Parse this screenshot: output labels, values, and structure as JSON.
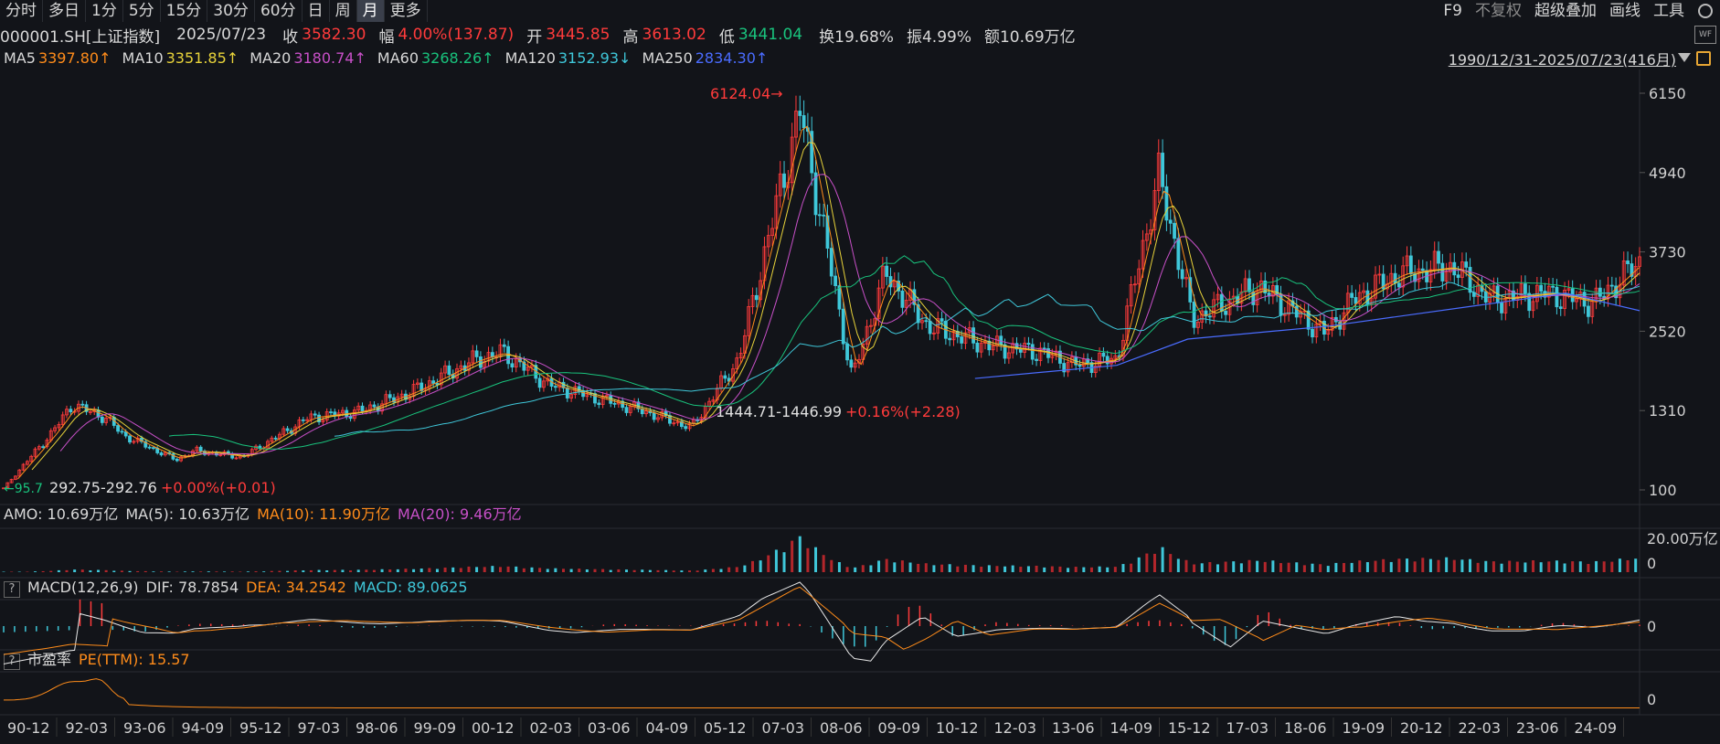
{
  "toolbar": {
    "periods": [
      "分时",
      "多日",
      "1分",
      "5分",
      "15分",
      "30分",
      "60分",
      "日",
      "周",
      "月",
      "更多"
    ],
    "active": "月",
    "right": [
      "F9",
      "不复权",
      "超级叠加",
      "画线",
      "工具"
    ]
  },
  "quote": {
    "code": "000001.SH[上证指数]",
    "date": "2025/07/23",
    "close_label": "收",
    "close": "3582.30",
    "change_label": "幅",
    "change": "4.00%(137.87)",
    "open_label": "开",
    "open": "3445.85",
    "high_label": "高",
    "high": "3613.02",
    "low_label": "低",
    "low": "3441.04",
    "turnover": "换19.68%",
    "amplitude": "振4.99%",
    "amount": "额10.69万亿"
  },
  "ma": [
    {
      "name": "MA5",
      "value": "3397.80↑",
      "color": "#ff8c1a"
    },
    {
      "name": "MA10",
      "value": "3351.85↑",
      "color": "#e8d33a"
    },
    {
      "name": "MA20",
      "value": "3180.74↑",
      "color": "#c850c8"
    },
    {
      "name": "MA60",
      "value": "3268.26↑",
      "color": "#19c37d"
    },
    {
      "name": "MA120",
      "value": "3152.93↓",
      "color": "#3fc7d9"
    },
    {
      "name": "MA250",
      "value": "2834.30↑",
      "color": "#4a6cff"
    }
  ],
  "range_label": "1990/12/31-2025/07/23(416月)",
  "annotations": {
    "peak": "6124.04",
    "low_2005": "1444.71-1446.99",
    "low_2005_chg": "+0.16%(+2.28)",
    "start": "292.75-292.76",
    "start_chg": "+0.00%(+0.01)",
    "first": "95.7"
  },
  "amo": {
    "label": "AMO: 10.69万亿",
    "ma5": "MA(5): 10.63万亿",
    "ma10": "MA(10): 11.90万亿",
    "ma20": "MA(20): 9.46万亿",
    "max_tick": "20.00万亿",
    "zero": "0"
  },
  "macd": {
    "q": "?",
    "label": "MACD(12,26,9)",
    "dif": "DIF: 78.7854",
    "dea": "DEA: 34.2542",
    "macd": "MACD: 89.0625",
    "zero": "0"
  },
  "pe": {
    "q": "?",
    "label": "市盈率",
    "value": "PE(TTM): 15.57",
    "zero": "0"
  },
  "colors": {
    "up": "#ff3b3b",
    "down": "#3fc7d9",
    "ma250": "#4a6cff"
  },
  "chart_data": {
    "type": "line",
    "title": "000001.SH[上证指数]",
    "y_ticks": [
      6150,
      4940,
      3730,
      2520,
      1310,
      100
    ],
    "x_ticks": [
      "90-12",
      "92-03",
      "93-06",
      "94-09",
      "95-12",
      "97-03",
      "98-06",
      "99-09",
      "00-12",
      "02-03",
      "03-06",
      "04-09",
      "05-12",
      "07-03",
      "08-06",
      "09-09",
      "10-12",
      "12-03",
      "13-06",
      "14-09",
      "15-12",
      "17-03",
      "18-06",
      "19-09",
      "20-12",
      "22-03",
      "23-06",
      "24-09"
    ],
    "series": [
      {
        "name": "收",
        "x": [
          1990.95,
          1992.0,
          1992.4,
          1993.1,
          1993.5,
          1994.6,
          1995.0,
          1996.0,
          1997.4,
          1998.5,
          1999.6,
          2000.9,
          2001.5,
          2002.5,
          2003.5,
          2004.5,
          2005.5,
          2006.5,
          2007.8,
          2008.9,
          2009.6,
          2010.5,
          2011.8,
          2012.9,
          2013.6,
          2014.5,
          2015.4,
          2016.1,
          2017.5,
          2018.9,
          2019.5,
          2020.5,
          2021.6,
          2022.4,
          2023.6,
          2024.6,
          2025.56
        ],
        "values": [
          127,
          1000,
          1400,
          1200,
          930,
          560,
          700,
          600,
          1200,
          1300,
          1600,
          2073,
          2200,
          1700,
          1500,
          1300,
          1050,
          2100,
          5900,
          1800,
          3400,
          2600,
          2300,
          2200,
          2000,
          2100,
          4900,
          2700,
          3200,
          2490,
          3000,
          3400,
          3500,
          3000,
          3100,
          2950,
          3582
        ]
      },
      {
        "name": "MA250",
        "x": [
          2011.5,
          2014.5,
          2016.0,
          2019.0,
          2022.0,
          2024.0,
          2025.56
        ],
        "values": [
          1800,
          2000,
          2400,
          2600,
          2900,
          3100,
          2834
        ]
      }
    ],
    "amo_max": 20.0,
    "ylim": [
      100,
      6150
    ]
  }
}
